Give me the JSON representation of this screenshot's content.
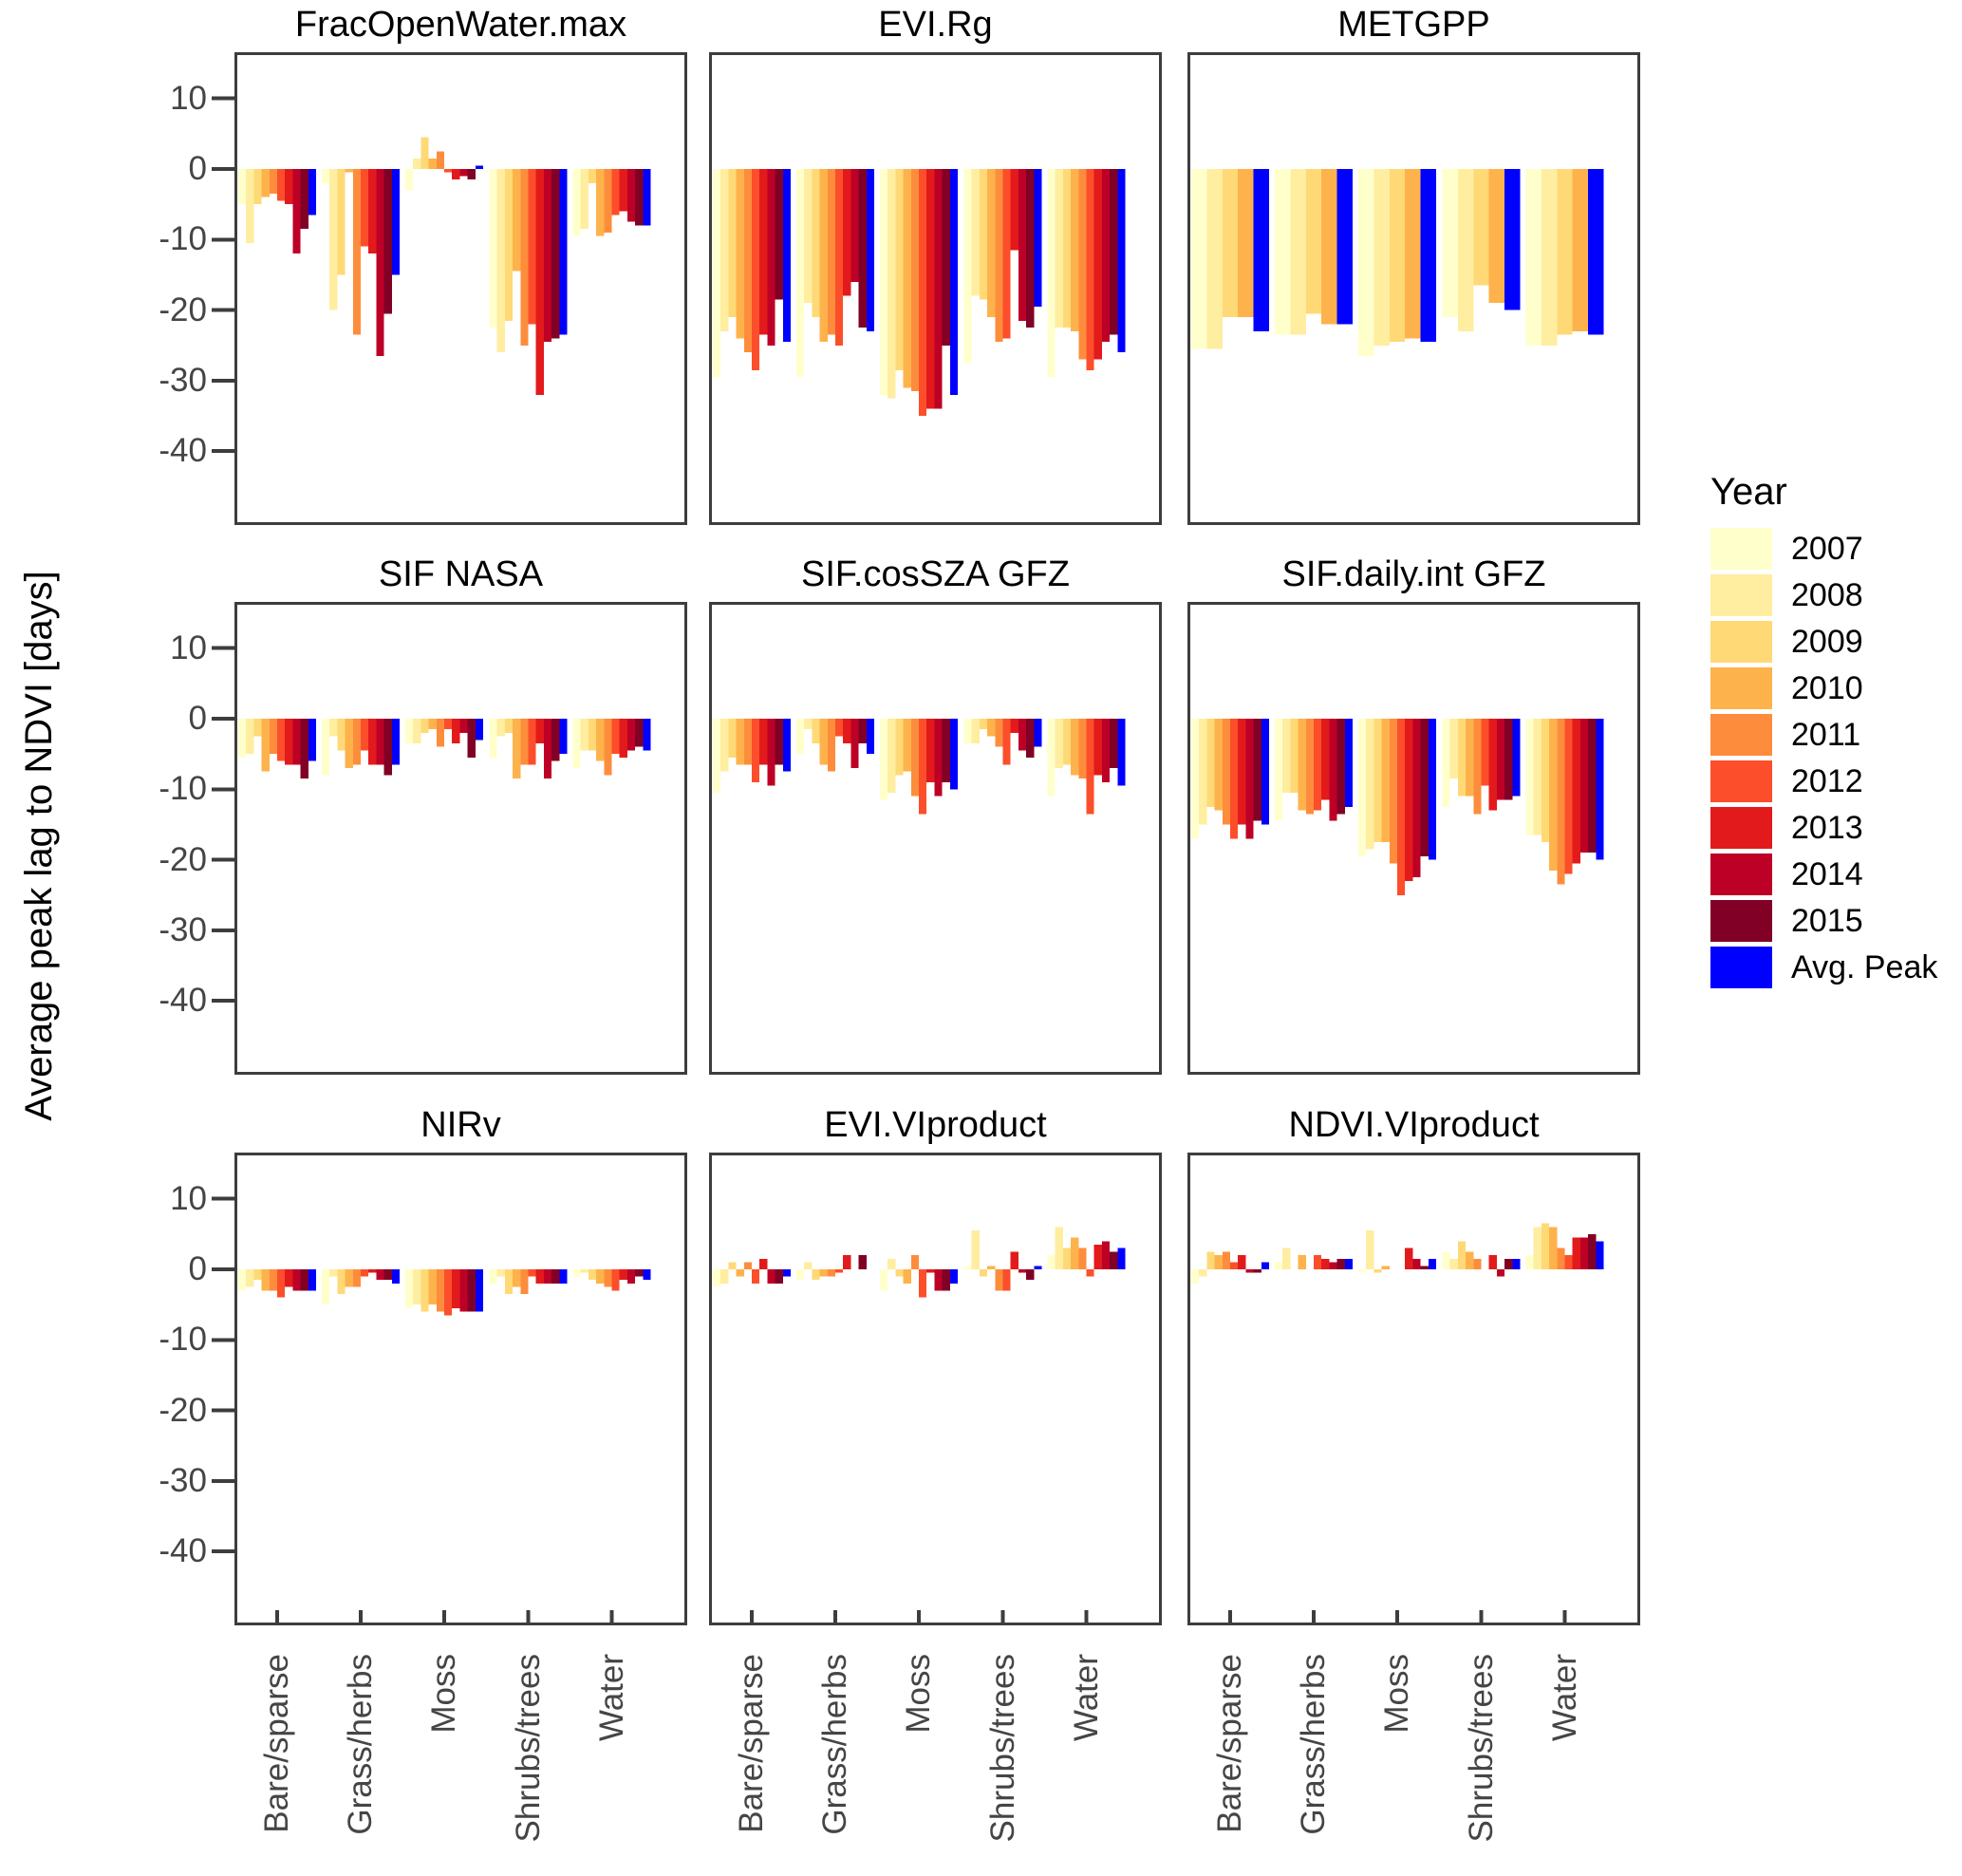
{
  "figure": {
    "ylabel": "Average peak lag to NDVI [days]",
    "y_tick_labels": [
      "10",
      "0",
      "-10",
      "-20",
      "-30",
      "-40"
    ],
    "legend": {
      "title": "Year",
      "items": [
        {
          "label": "2007",
          "color": "#FFFFCC"
        },
        {
          "label": "2008",
          "color": "#FFEDA0"
        },
        {
          "label": "2009",
          "color": "#FED976"
        },
        {
          "label": "2010",
          "color": "#FEB24C"
        },
        {
          "label": "2011",
          "color": "#FD8D3C"
        },
        {
          "label": "2012",
          "color": "#FC4E2A"
        },
        {
          "label": "2013",
          "color": "#E31A1C"
        },
        {
          "label": "2014",
          "color": "#BD0026"
        },
        {
          "label": "2015",
          "color": "#800026"
        },
        {
          "label": "Avg. Peak",
          "color": "#0000FF"
        }
      ]
    }
  },
  "chart_data": {
    "type": "bar",
    "title": "",
    "xlabel": "",
    "ylabel": "Average peak lag to NDVI [days]",
    "ylim": [
      -50,
      16.5
    ],
    "y_ticks": [
      10,
      0,
      -10,
      -20,
      -30,
      -40
    ],
    "grid": false,
    "legend_position": "right",
    "categories": [
      "Bare/sparse",
      "Grass/herbs",
      "Moss",
      "Shrubs/trees",
      "Water"
    ],
    "panels": [
      {
        "title": "FracOpenWater.max",
        "series": [
          "2007",
          "2008",
          "2009",
          "2010",
          "2011",
          "2012",
          "2013",
          "2014",
          "2015",
          "Avg. Peak"
        ],
        "values": {
          "Bare/sparse": [
            -5,
            -10.5,
            -5,
            -4,
            -3.5,
            -4.5,
            -5,
            -12,
            -8.5,
            -6.5
          ],
          "Grass/herbs": [
            -2,
            -20,
            -15,
            -0.5,
            -23.5,
            -11,
            -12,
            -26.5,
            -20.5,
            -15
          ],
          "Moss": [
            -3,
            1.5,
            4.5,
            1.5,
            2.5,
            -0.5,
            -1.5,
            -1,
            -1.5,
            0.5
          ],
          "Shrubs/trees": [
            -22.5,
            -26,
            -21.5,
            -14.5,
            -25,
            -22,
            -32,
            -24.5,
            -24,
            -23.5
          ],
          "Water": [
            -9.5,
            -8.5,
            -2,
            -9.5,
            -9,
            -6.5,
            -6,
            -7.5,
            -8,
            -8
          ]
        }
      },
      {
        "title": "EVI.Rg",
        "series": [
          "2007",
          "2008",
          "2009",
          "2010",
          "2011",
          "2012",
          "2013",
          "2014",
          "2015",
          "Avg. Peak"
        ],
        "values": {
          "Bare/sparse": [
            -29.5,
            -23,
            -21,
            -24,
            -26,
            -28.5,
            -23.5,
            -25,
            -18.5,
            -24.5
          ],
          "Grass/herbs": [
            -29.5,
            -19,
            -21,
            -24.5,
            -23.5,
            -25,
            -18,
            -16,
            -22.5,
            -23
          ],
          "Moss": [
            -32,
            -32.5,
            -28.5,
            -31,
            -31.5,
            -35,
            -34,
            -34,
            -25,
            -32
          ],
          "Shrubs/trees": [
            -27.5,
            -18,
            -18.5,
            -21,
            -24.5,
            -24,
            -11.5,
            -21.5,
            -22.5,
            -19.5
          ],
          "Water": [
            -29.5,
            -22.5,
            -22.5,
            -23,
            -27,
            -28.5,
            -27,
            -24.5,
            -23.5,
            -26
          ]
        }
      },
      {
        "title": "METGPP",
        "series": [
          "2007",
          "2008",
          "2009",
          "2010",
          "Avg. Peak"
        ],
        "values": {
          "Bare/sparse": [
            -25.5,
            -25.5,
            -21,
            -21,
            -23
          ],
          "Grass/herbs": [
            -23.5,
            -23.5,
            -20.5,
            -22,
            -22
          ],
          "Moss": [
            -26.5,
            -25,
            -24.5,
            -24,
            -24.5
          ],
          "Shrubs/trees": [
            -21,
            -23,
            -16.5,
            -19,
            -20
          ],
          "Water": [
            -25,
            -25,
            -23.5,
            -23,
            -23.5
          ]
        }
      },
      {
        "title": "SIF NASA",
        "series": [
          "2007",
          "2008",
          "2009",
          "2010",
          "2011",
          "2012",
          "2013",
          "2014",
          "2015",
          "Avg. Peak"
        ],
        "values": {
          "Bare/sparse": [
            -5.5,
            -5,
            -2.5,
            -7.5,
            -5,
            -6,
            -6.5,
            -6.5,
            -8.5,
            -6
          ],
          "Grass/herbs": [
            -8,
            -2.5,
            -4.5,
            -7,
            -6.5,
            -4.5,
            -6.5,
            -6.5,
            -8,
            -6.5
          ],
          "Moss": [
            -3.5,
            -3.5,
            -2,
            -1.5,
            -4,
            -1.5,
            -3.5,
            -2,
            -5.5,
            -3
          ],
          "Shrubs/trees": [
            -5.5,
            -2.5,
            -2,
            -8.5,
            -6.5,
            -6.5,
            -3.5,
            -8.5,
            -6,
            -5
          ],
          "Water": [
            -7,
            -4.5,
            -4.5,
            -6,
            -8,
            -5,
            -5.5,
            -4.5,
            -4,
            -4.5
          ]
        }
      },
      {
        "title": "SIF.cosSZA GFZ",
        "series": [
          "2007",
          "2008",
          "2009",
          "2010",
          "2011",
          "2012",
          "2013",
          "2014",
          "2015",
          "Avg. Peak"
        ],
        "values": {
          "Bare/sparse": [
            -10.5,
            -7.5,
            -5.5,
            -6.5,
            -6.5,
            -9,
            -6.5,
            -9.5,
            -6.5,
            -7.5
          ],
          "Grass/herbs": [
            -5,
            -1.5,
            -3.5,
            -6.5,
            -7.5,
            -2.5,
            -3.5,
            -7,
            -3.5,
            -5
          ],
          "Moss": [
            -11.5,
            -10.5,
            -8,
            -7.5,
            -11,
            -13.5,
            -9,
            -11,
            -9,
            -10
          ],
          "Shrubs/trees": [
            -3.5,
            -3.5,
            -1.5,
            -2.5,
            -4,
            -6.5,
            -2,
            -4.5,
            -5.5,
            -4
          ],
          "Water": [
            -11,
            -7,
            -6.5,
            -8,
            -8.5,
            -13.5,
            -8,
            -9,
            -7,
            -9.5
          ]
        }
      },
      {
        "title": "SIF.daily.int GFZ",
        "series": [
          "2007",
          "2008",
          "2009",
          "2010",
          "2011",
          "2012",
          "2013",
          "2014",
          "2015",
          "Avg. Peak"
        ],
        "values": {
          "Bare/sparse": [
            -17,
            -15,
            -12.5,
            -13,
            -15,
            -17,
            -15,
            -17,
            -14.5,
            -15
          ],
          "Grass/herbs": [
            -14.5,
            -10.5,
            -10.5,
            -13,
            -13.5,
            -13,
            -11.5,
            -14.5,
            -13.5,
            -12.5
          ],
          "Moss": [
            -19.5,
            -18.5,
            -17.5,
            -17.5,
            -20.5,
            -25,
            -23,
            -22.5,
            -19.5,
            -20
          ],
          "Shrubs/trees": [
            -12.5,
            -8.5,
            -11,
            -11,
            -13.5,
            -9.5,
            -13,
            -11.5,
            -11.5,
            -11
          ],
          "Water": [
            -16.5,
            -16.5,
            -17.5,
            -21.5,
            -23.5,
            -22,
            -20.5,
            -19,
            -19,
            -20
          ]
        }
      },
      {
        "title": "NIRv",
        "series": [
          "2007",
          "2008",
          "2009",
          "2010",
          "2011",
          "2012",
          "2013",
          "2014",
          "2015",
          "Avg. Peak"
        ],
        "values": {
          "Bare/sparse": [
            -3,
            -2.5,
            -1.5,
            -3,
            -3,
            -4,
            -2.5,
            -3,
            -3,
            -3
          ],
          "Grass/herbs": [
            -5,
            -1,
            -3.5,
            -2.5,
            -2.5,
            -1,
            -0.5,
            -1.5,
            -1.5,
            -2
          ],
          "Moss": [
            -5.5,
            -5,
            -6,
            -5,
            -6,
            -6.5,
            -5.5,
            -6,
            -6,
            -6
          ],
          "Shrubs/trees": [
            -2,
            -1,
            -3.5,
            -2.5,
            -3.5,
            -1,
            -2,
            -2,
            -2,
            -2
          ],
          "Water": [
            -1,
            -0.5,
            -1.5,
            -2,
            -2.5,
            -3,
            -1.5,
            -2,
            -1,
            -1.5
          ]
        }
      },
      {
        "title": "EVI.VIproduct",
        "series": [
          "2007",
          "2008",
          "2009",
          "2010",
          "2011",
          "2012",
          "2013",
          "2014",
          "2015",
          "Avg. Peak"
        ],
        "values": {
          "Bare/sparse": [
            -2.5,
            -2,
            1,
            -1,
            1,
            -2,
            1.5,
            -2,
            -2,
            -1
          ],
          "Grass/herbs": [
            -1.5,
            1,
            -1.5,
            -1,
            -1,
            -0.5,
            2,
            0,
            2,
            0
          ],
          "Moss": [
            -3,
            1.5,
            -1,
            -2,
            2,
            -4,
            -0.5,
            -3,
            -3,
            -2
          ],
          "Shrubs/trees": [
            0.5,
            5.5,
            -1,
            0.5,
            -3,
            -3,
            2.5,
            -0.5,
            -1.5,
            0.5
          ],
          "Water": [
            2,
            6,
            3,
            4.5,
            3,
            -1,
            3.5,
            4,
            2.5,
            3
          ]
        }
      },
      {
        "title": "NDVI.VIproduct",
        "series": [
          "2007",
          "2008",
          "2009",
          "2010",
          "2011",
          "2012",
          "2013",
          "2014",
          "2015",
          "Avg. Peak"
        ],
        "values": {
          "Bare/sparse": [
            -2,
            -1,
            2.5,
            2,
            2.5,
            1,
            2,
            -0.5,
            -0.5,
            1
          ],
          "Grass/herbs": [
            1,
            3,
            0,
            2,
            0,
            2,
            1.5,
            1,
            1.5,
            1.5
          ],
          "Moss": [
            -0.5,
            5.5,
            -0.5,
            0.5,
            0,
            0,
            3,
            1.5,
            0.5,
            1.5
          ],
          "Shrubs/trees": [
            2.5,
            1.5,
            4,
            2.5,
            1.5,
            0,
            2,
            -1,
            1.5,
            1.5
          ],
          "Water": [
            2,
            6,
            6.5,
            6,
            3,
            2,
            4.5,
            4.5,
            5,
            4
          ]
        }
      }
    ]
  }
}
